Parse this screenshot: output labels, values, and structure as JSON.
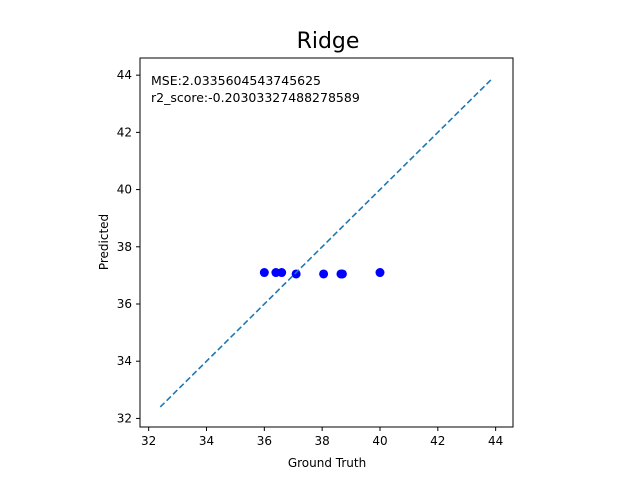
{
  "chart_data": {
    "type": "scatter",
    "title": "Ridge",
    "xlabel": "Ground Truth",
    "ylabel": "Predicted",
    "xlim": [
      31.7,
      44.6
    ],
    "ylim": [
      31.7,
      44.6
    ],
    "x_ticks": [
      32,
      34,
      36,
      38,
      40,
      42,
      44
    ],
    "y_ticks": [
      32,
      34,
      36,
      38,
      40,
      42,
      44
    ],
    "grid": false,
    "annotations": [
      "MSE:2.0335604543745625",
      "r2_score:-0.20303327488278589"
    ],
    "series": [
      {
        "kind": "scatter",
        "color": "#0000ff",
        "x": [
          36.0,
          36.4,
          36.6,
          37.1,
          38.05,
          38.65,
          38.7,
          40.0
        ],
        "y": [
          37.1,
          37.1,
          37.1,
          37.05,
          37.05,
          37.05,
          37.05,
          37.1
        ]
      },
      {
        "kind": "line",
        "style": "dashed",
        "color": "#1f77b4",
        "x": [
          32.4,
          43.9
        ],
        "y": [
          32.4,
          43.9
        ]
      }
    ]
  }
}
